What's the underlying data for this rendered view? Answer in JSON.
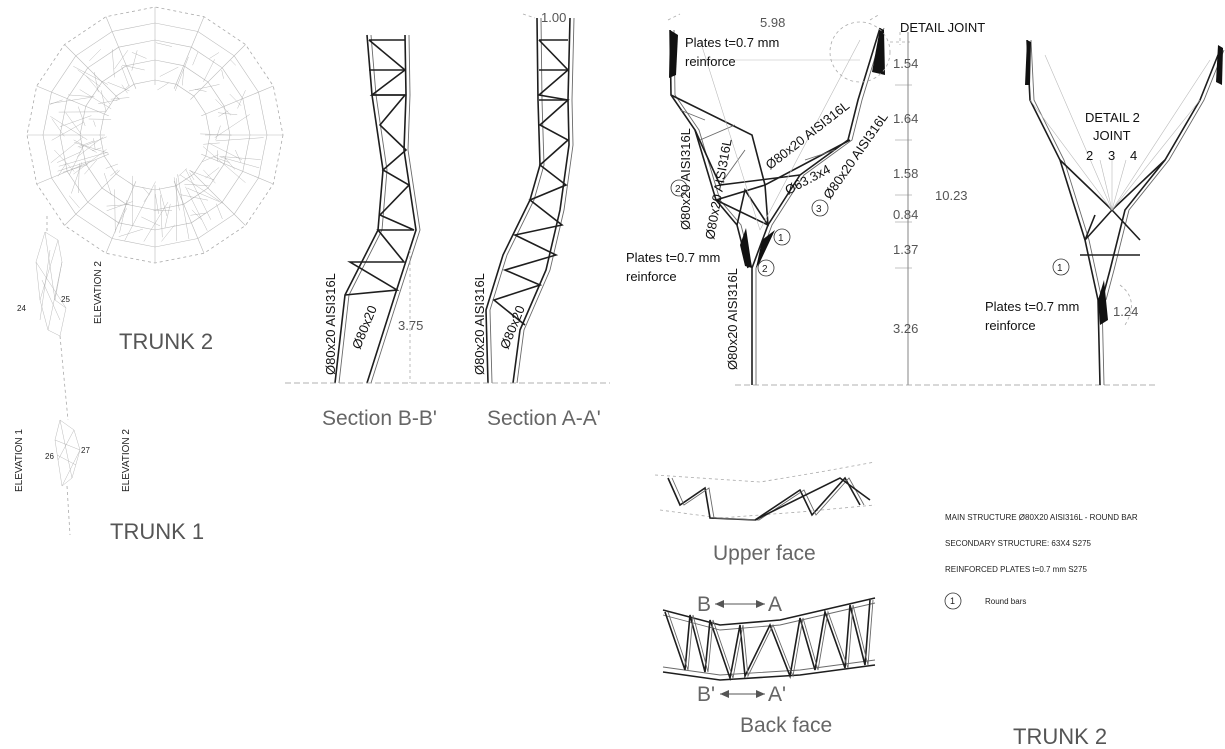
{
  "plan": {
    "trunk2_title": "TRUNK 2",
    "trunk1_title": "TRUNK 1",
    "elevation1": "ELEVATION 1",
    "elevation2a": "ELEVATION 2",
    "elevation2b": "ELEVATION 2",
    "node_labels": [
      "24",
      "25",
      "26",
      "27"
    ]
  },
  "sections": {
    "b_caption": "Section B-B'",
    "a_caption": "Section A-A'",
    "member_main": "Ø80x20 AISI316L",
    "member_secondary": "Ø80x20",
    "member_main_a": "Ø80x20 AISI316L",
    "member_secondary_a": "Ø80x20",
    "height": "3.75",
    "top_dim": "1.00"
  },
  "elevation": {
    "top_width": "5.98",
    "plates_top": "Plates t=0.7 mm",
    "reinforce_top": "reinforce",
    "plates_mid": "Plates t=0.7 mm",
    "reinforce_mid": "reinforce",
    "member_left": "Ø80x20 AISI316L",
    "member_left2": "Ø80x20 AISI316L",
    "member_diag": "Ø80x20 AISI316L",
    "member_secondary": "Ø63.3x4",
    "member_right": "Ø80x20 AISI316L",
    "member_trunk": "Ø80x20 AISI316L",
    "detail_joint": "DETAIL  JOINT",
    "dims": [
      "1.54",
      "1.64",
      "1.58",
      "0.84",
      "1.37",
      "3.26"
    ],
    "total": "10.23",
    "callouts": [
      "1",
      "2",
      "3",
      "2"
    ]
  },
  "detail2": {
    "title_line1": "DETAIL 2",
    "title_line2": "JOINT",
    "joint_numbers": [
      "2",
      "3",
      "4"
    ],
    "callout": "1",
    "plates": "Plates t=0.7 mm",
    "reinforce": "reinforce",
    "dim": "1.24"
  },
  "faces": {
    "upper_caption": "Upper face",
    "back_caption": "Back face",
    "b_arrow_left": "B",
    "b_arrow_right": "A",
    "a_arrow_left": "B'",
    "a_arrow_right": "A'"
  },
  "legend": {
    "main": "MAIN STRUCTURE Ø80X20 AISI316L - ROUND BAR",
    "secondary": "SECONDARY STRUCTURE: 63X4 S275",
    "plates": "REINFORCED PLATES t=0.7 mm S275",
    "symbol_number": "1",
    "symbol_text": "Round bars"
  },
  "footer": {
    "title": "TRUNK 2"
  }
}
